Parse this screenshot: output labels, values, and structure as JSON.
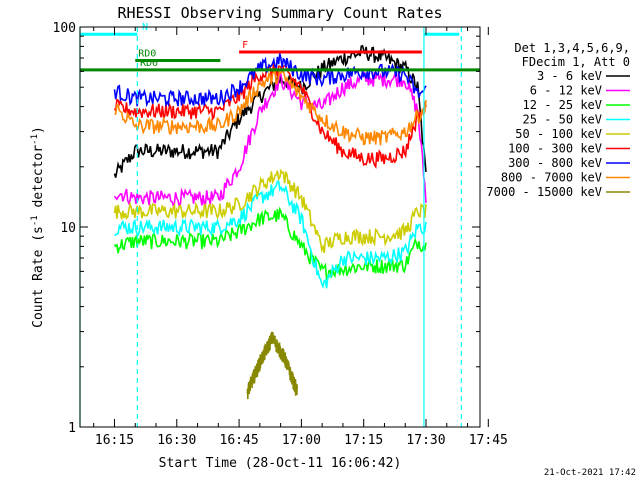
{
  "chart_data": {
    "type": "line",
    "title": "RHESSI Observing Summary Count Rates",
    "xlabel": "Start Time (28-Oct-11 16:06:42)",
    "ylabel_main": "Count Rate (s",
    "ylabel_sup1": "-1",
    "ylabel_mid": " detector",
    "ylabel_sup2": "-1",
    "ylabel_end": ")",
    "yscale": "log",
    "ylim": [
      1,
      100
    ],
    "xlim_minutes": [
      6.7,
      103
    ],
    "x_ticks": [
      {
        "label": "16:15",
        "t": 15
      },
      {
        "label": "16:30",
        "t": 30
      },
      {
        "label": "16:45",
        "t": 45
      },
      {
        "label": "17:00",
        "t": 60
      },
      {
        "label": "17:15",
        "t": 75
      },
      {
        "label": "17:30",
        "t": 90
      },
      {
        "label": "17:45",
        "t": 105
      }
    ],
    "y_ticks": [
      {
        "label": "1",
        "v": 1
      },
      {
        "label": "10",
        "v": 10
      },
      {
        "label": "100",
        "v": 100
      }
    ],
    "legend_header": [
      "Det 1,3,4,5,6,9,",
      "FDecim 1, Att 0"
    ],
    "series": [
      {
        "name": "3 - 6 keV",
        "color": "#000000",
        "points": [
          [
            15,
            18
          ],
          [
            20,
            24
          ],
          [
            30,
            24
          ],
          [
            40,
            24
          ],
          [
            45,
            35
          ],
          [
            50,
            45
          ],
          [
            55,
            55
          ],
          [
            60,
            50
          ],
          [
            65,
            62
          ],
          [
            70,
            70
          ],
          [
            75,
            75
          ],
          [
            80,
            70
          ],
          [
            85,
            62
          ],
          [
            88,
            50
          ],
          [
            90,
            18
          ]
        ]
      },
      {
        "name": "6 - 12 keV",
        "color": "#ff00ff",
        "points": [
          [
            15,
            15
          ],
          [
            20,
            14
          ],
          [
            30,
            14
          ],
          [
            40,
            14
          ],
          [
            45,
            20
          ],
          [
            50,
            38
          ],
          [
            55,
            55
          ],
          [
            60,
            42
          ],
          [
            65,
            40
          ],
          [
            70,
            50
          ],
          [
            75,
            55
          ],
          [
            80,
            55
          ],
          [
            85,
            55
          ],
          [
            88,
            38
          ],
          [
            90,
            14
          ]
        ]
      },
      {
        "name": "12 - 25 keV",
        "color": "#00ff00",
        "points": [
          [
            15,
            8
          ],
          [
            20,
            8.5
          ],
          [
            30,
            8.5
          ],
          [
            40,
            8.5
          ],
          [
            45,
            9.5
          ],
          [
            50,
            11
          ],
          [
            55,
            11.5
          ],
          [
            60,
            8
          ],
          [
            65,
            6
          ],
          [
            70,
            6.2
          ],
          [
            75,
            6.4
          ],
          [
            80,
            6.4
          ],
          [
            85,
            6.5
          ],
          [
            88,
            8.5
          ],
          [
            90,
            8
          ]
        ]
      },
      {
        "name": "25 - 50 keV",
        "color": "#00ffff",
        "points": [
          [
            15,
            10
          ],
          [
            20,
            10
          ],
          [
            30,
            10
          ],
          [
            40,
            10
          ],
          [
            45,
            11
          ],
          [
            50,
            14
          ],
          [
            55,
            16
          ],
          [
            60,
            11
          ],
          [
            65,
            5
          ],
          [
            70,
            7
          ],
          [
            75,
            7
          ],
          [
            80,
            7
          ],
          [
            85,
            7.5
          ],
          [
            88,
            10
          ],
          [
            90,
            10
          ]
        ]
      },
      {
        "name": "50 - 100 keV",
        "color": "#cccc00",
        "points": [
          [
            15,
            12
          ],
          [
            20,
            12
          ],
          [
            30,
            12
          ],
          [
            40,
            12
          ],
          [
            45,
            13
          ],
          [
            50,
            16
          ],
          [
            55,
            19
          ],
          [
            60,
            14
          ],
          [
            65,
            8
          ],
          [
            70,
            9
          ],
          [
            75,
            9
          ],
          [
            80,
            9
          ],
          [
            85,
            9.5
          ],
          [
            88,
            12
          ],
          [
            90,
            12
          ]
        ]
      },
      {
        "name": "100 - 300 keV",
        "color": "#ff0000",
        "points": [
          [
            15,
            40
          ],
          [
            20,
            38
          ],
          [
            30,
            38
          ],
          [
            40,
            38
          ],
          [
            45,
            45
          ],
          [
            50,
            58
          ],
          [
            55,
            62
          ],
          [
            60,
            50
          ],
          [
            65,
            30
          ],
          [
            70,
            24
          ],
          [
            75,
            22
          ],
          [
            80,
            22
          ],
          [
            85,
            24
          ],
          [
            88,
            36
          ],
          [
            90,
            40
          ]
        ]
      },
      {
        "name": "300 - 800 keV",
        "color": "#0000ff",
        "points": [
          [
            15,
            48
          ],
          [
            20,
            44
          ],
          [
            30,
            44
          ],
          [
            40,
            44
          ],
          [
            45,
            50
          ],
          [
            50,
            62
          ],
          [
            55,
            68
          ],
          [
            60,
            58
          ],
          [
            65,
            55
          ],
          [
            70,
            58
          ],
          [
            75,
            60
          ],
          [
            80,
            60
          ],
          [
            85,
            58
          ],
          [
            88,
            46
          ],
          [
            90,
            48
          ]
        ]
      },
      {
        "name": "800 - 7000 keV",
        "color": "#ff8800",
        "points": [
          [
            15,
            40
          ],
          [
            20,
            32
          ],
          [
            30,
            32
          ],
          [
            40,
            32
          ],
          [
            45,
            38
          ],
          [
            50,
            52
          ],
          [
            55,
            58
          ],
          [
            60,
            45
          ],
          [
            65,
            35
          ],
          [
            70,
            30
          ],
          [
            75,
            28
          ],
          [
            80,
            28
          ],
          [
            85,
            30
          ],
          [
            88,
            36
          ],
          [
            90,
            40
          ]
        ]
      },
      {
        "name": "7000 - 15000 keV",
        "color": "#888800",
        "points": [
          [
            47,
            1.5
          ],
          [
            50,
            2.1
          ],
          [
            53,
            2.8
          ],
          [
            56,
            2.2
          ],
          [
            59,
            1.5
          ]
        ]
      }
    ],
    "annotations": {
      "N": {
        "label": "N",
        "color": "#00ffff",
        "value": 92,
        "segments": [
          [
            6.7,
            20.5
          ],
          [
            89.5,
            98
          ]
        ]
      },
      "F": {
        "label": "F",
        "color": "#ff0000",
        "value": 75,
        "segments": [
          [
            45,
            89
          ]
        ]
      },
      "RD0": {
        "label": "RD0",
        "color": "#008800",
        "value": 68,
        "segments": [
          [
            20,
            40.5
          ]
        ]
      },
      "RD6": {
        "label": "RD6",
        "color": "#008800",
        "value": 61,
        "segments": [
          [
            6.7,
            103
          ]
        ]
      }
    },
    "vlines": [
      {
        "t": 6.7,
        "color": "#00ffff",
        "style": "solid"
      },
      {
        "t": 20.5,
        "color": "#00ffff",
        "style": "dashed"
      },
      {
        "t": 89.5,
        "color": "#00ffff",
        "style": "solid"
      },
      {
        "t": 98.5,
        "color": "#00ffff",
        "style": "dashed"
      }
    ],
    "footer_date": "21-Oct-2021 17:42"
  }
}
